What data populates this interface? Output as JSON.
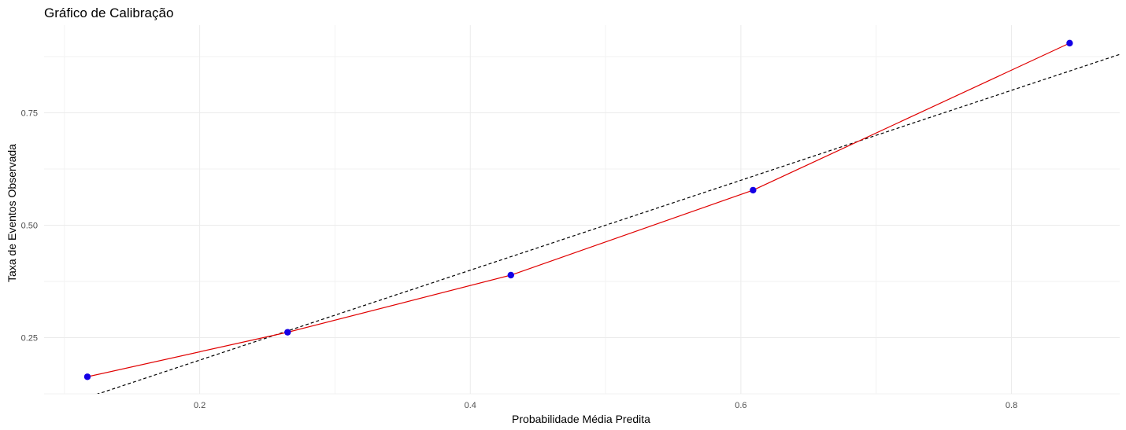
{
  "chart_data": {
    "type": "line",
    "title": "Gráfico de Calibração",
    "xlabel": "Probabilidade Média Predita",
    "ylabel": "Taxa de Eventos Observada",
    "xlim": [
      0.085,
      0.88
    ],
    "ylim": [
      0.125,
      0.945
    ],
    "x_ticks": [
      0.2,
      0.4,
      0.6,
      0.8
    ],
    "x_tick_labels": [
      "0.2",
      "0.4",
      "0.6",
      "0.8"
    ],
    "y_ticks": [
      0.25,
      0.5,
      0.75
    ],
    "y_tick_labels": [
      "0.25",
      "0.50",
      "0.75"
    ],
    "grid": true,
    "series": [
      {
        "x": [
          0.117,
          0.265,
          0.43,
          0.609,
          0.843
        ],
        "y": [
          0.163,
          0.262,
          0.389,
          0.578,
          0.905
        ],
        "line_color": "#e00000",
        "point_color": "#1400e6"
      }
    ],
    "reference_line": {
      "style": "dashed",
      "color": "#000000",
      "x": [
        0.085,
        0.88
      ],
      "y": [
        0.085,
        0.88
      ]
    }
  }
}
